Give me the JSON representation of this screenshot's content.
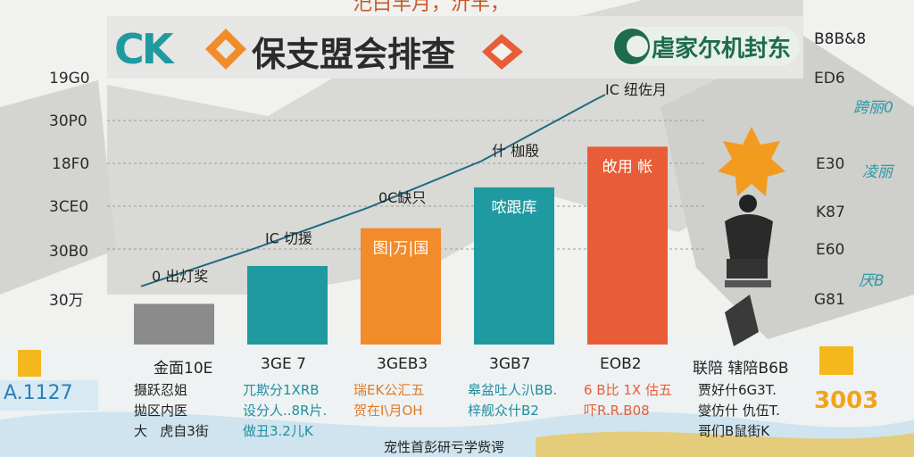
{
  "header": {
    "top_text": "汜白丰月，沂丰，",
    "logo_text": "CK",
    "title": "保支盟会排查",
    "brand_right": "虐家尔机封东"
  },
  "colors": {
    "teal": "#2a9aa4",
    "orange": "#f28b2a",
    "red_orange": "#e85d37",
    "gray_bar": "#8b8b8b",
    "accent_yellow": "#f5b81c"
  },
  "left_badge": "A.1127",
  "right_badge": "3003",
  "right_top_label": "B8B&8",
  "caption": "宠性首彭研亏学赀谔",
  "chart_data": {
    "type": "bar",
    "title": "保支盟会排查",
    "xlabel": "",
    "ylabel": "",
    "y_tick_labels": [
      "19G0",
      "30P0",
      "18F0",
      "3CE0",
      "30B0",
      "30万"
    ],
    "right_tick_labels": [
      "ED6",
      "E30",
      "K87",
      "E60",
      "G81"
    ],
    "right_annotations": [
      "跨丽0",
      "凌丽",
      "厌B"
    ],
    "categories": [
      "金面10E",
      "3GE 7",
      "3GEB3",
      "3GB7",
      "EOB2"
    ],
    "values": [
      14,
      27,
      40,
      54,
      68
    ],
    "ylim": [
      0,
      100
    ],
    "bar_labels": [
      "",
      "",
      "图|万|国",
      "哝跟库",
      "敀用 帐"
    ],
    "top_labels": [
      "0 出灯奖",
      "IC 切援",
      "0C缺只",
      "什 枷殷",
      "IC 纽佐月"
    ],
    "trend_values": [
      20,
      33,
      47,
      63,
      84
    ],
    "bar_colors": [
      "#8b8b8b",
      "#1f9aa0",
      "#f28b2a",
      "#1f9aa0",
      "#e85d37"
    ],
    "descriptions": [
      "摄跃忍姐\n拋区内医\n大   虎自3街",
      "兀欺分1XRB\n设分人..8R片.\n做丑3.2儿K",
      "瑞EK公汇五\n贺在I\\月OH\n",
      "皋盆吐人汃BB.\n梓舰众什B2\n",
      "6 B比 1X 估五\n吓R.R.B08\n",
      "贾好什6G3T.\n燮仿什 仇伍T.\n哥们B鼠街K"
    ],
    "description_colors": [
      "#222222",
      "#1f8fa0",
      "#e07a25",
      "#1f8fa0",
      "#e85d37",
      "#222222"
    ],
    "extra_category": "联陪 辖陪B6B"
  }
}
